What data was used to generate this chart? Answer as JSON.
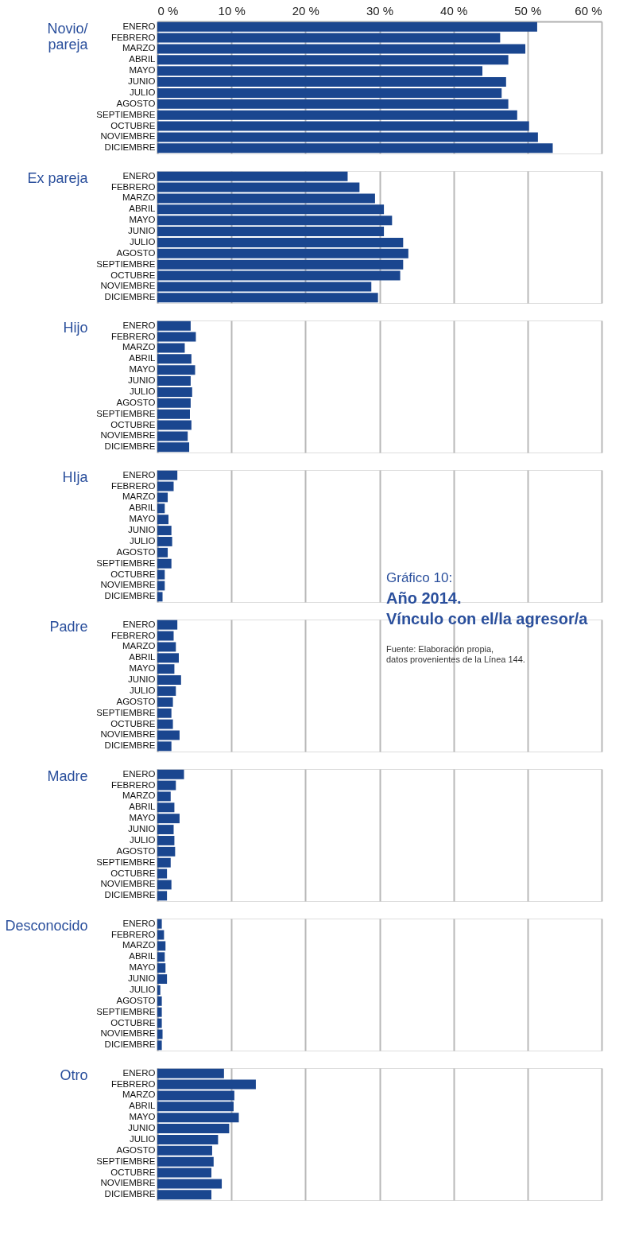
{
  "chart_data": [
    {
      "type": "bar",
      "orientation": "horizontal",
      "ylabel": "Novio/\npareja",
      "categories": [
        "ENERO",
        "FEBRERO",
        "MARZO",
        "ABRIL",
        "MAYO",
        "JUNIO",
        "JULIO",
        "AGOSTO",
        "SEPTIEMBRE",
        "OCTUBRE",
        "NOVIEMBRE",
        "DICIEMBRE"
      ],
      "color": "#1a468f",
      "values": [
        51.3,
        46.3,
        49.7,
        47.4,
        43.9,
        47.1,
        46.5,
        47.4,
        48.6,
        50.2,
        51.4,
        53.4
      ],
      "xlim": [
        0,
        60
      ],
      "xticks": [
        {
          "value": 0,
          "label": "0 %"
        },
        {
          "value": 10,
          "label": "10 %"
        },
        {
          "value": 20,
          "label": "20 %"
        },
        {
          "value": 30,
          "label": "30 %"
        },
        {
          "value": 40,
          "label": "40 %"
        },
        {
          "value": 50,
          "label": "50 %"
        },
        {
          "value": 60,
          "label": "60 %"
        }
      ],
      "grid": "x"
    },
    {
      "type": "bar",
      "orientation": "horizontal",
      "ylabel": "Ex pareja",
      "categories": [
        "ENERO",
        "FEBRERO",
        "MARZO",
        "ABRIL",
        "MAYO",
        "JUNIO",
        "JULIO",
        "AGOSTO",
        "SEPTIEMBRE",
        "OCTUBRE",
        "NOVIEMBRE",
        "DICIEMBRE"
      ],
      "color": "#1a468f",
      "values": [
        25.7,
        27.3,
        29.4,
        30.6,
        31.7,
        30.6,
        33.2,
        33.9,
        33.2,
        32.8,
        28.9,
        29.8
      ],
      "xlim": [
        0,
        60
      ],
      "xticks": [
        {
          "value": 0,
          "label": null
        },
        {
          "value": 10,
          "label": null
        },
        {
          "value": 20,
          "label": null
        },
        {
          "value": 30,
          "label": null
        },
        {
          "value": 40,
          "label": null
        },
        {
          "value": 50,
          "label": null
        },
        {
          "value": 60,
          "label": null
        }
      ],
      "tick_labels": "y",
      "grid": "x"
    },
    {
      "type": "bar",
      "orientation": "horizontal",
      "ylabel": "Hijo",
      "categories": [
        "ENERO",
        "FEBRERO",
        "MARZO",
        "ABRIL",
        "MAYO",
        "JUNIO",
        "JULIO",
        "AGOSTO",
        "SEPTIEMBRE",
        "OCTUBRE",
        "NOVIEMBRE",
        "DICIEMBRE"
      ],
      "color": "#1a468f",
      "values": [
        4.5,
        5.2,
        3.7,
        4.6,
        5.1,
        4.5,
        4.7,
        4.5,
        4.4,
        4.6,
        4.1,
        4.3
      ],
      "xlim": [
        0,
        60
      ],
      "xticks": [
        {
          "value": 0,
          "label": null
        },
        {
          "value": 10,
          "label": null
        },
        {
          "value": 20,
          "label": null
        },
        {
          "value": 30,
          "label": null
        },
        {
          "value": 40,
          "label": null
        },
        {
          "value": 50,
          "label": null
        },
        {
          "value": 60,
          "label": null
        }
      ],
      "tick_labels": "y",
      "grid": "x"
    },
    {
      "type": "bar",
      "orientation": "horizontal",
      "ylabel": "HIja",
      "categories": [
        "ENERO",
        "FEBRERO",
        "MARZO",
        "ABRIL",
        "MAYO",
        "JUNIO",
        "JULIO",
        "AGOSTO",
        "SEPTIEMBRE",
        "OCTUBRE",
        "NOVIEMBRE",
        "DICIEMBRE"
      ],
      "color": "#1a468f",
      "values": [
        2.7,
        2.2,
        1.4,
        1.0,
        1.5,
        1.9,
        2.0,
        1.4,
        1.9,
        1.0,
        1.0,
        0.7
      ],
      "xlim": [
        0,
        60
      ],
      "xticks": [
        {
          "value": 0,
          "label": null
        },
        {
          "value": 10,
          "label": null
        },
        {
          "value": 20,
          "label": null
        },
        {
          "value": 30,
          "label": null
        },
        {
          "value": 40,
          "label": null
        },
        {
          "value": 50,
          "label": null
        },
        {
          "value": 60,
          "label": null
        }
      ],
      "tick_labels": "y",
      "grid": "x"
    },
    {
      "type": "bar",
      "orientation": "horizontal",
      "title": "Año 2014.\nVínculo con el/la agresor/a",
      "annotations": [
        "Gráfico 10:",
        "Fuente: Elaboración propia,\ndatos provenientes de la Línea 144."
      ],
      "ylabel": "Padre",
      "categories": [
        "ENERO",
        "FEBRERO",
        "MARZO",
        "ABRIL",
        "MAYO",
        "JUNIO",
        "JULIO",
        "AGOSTO",
        "SEPTIEMBRE",
        "OCTUBRE",
        "NOVIEMBRE",
        "DICIEMBRE"
      ],
      "color": "#1a468f",
      "values": [
        2.7,
        2.2,
        2.5,
        2.9,
        2.3,
        3.2,
        2.5,
        2.1,
        1.9,
        2.1,
        3.0,
        1.9
      ],
      "xlim": [
        0,
        60
      ],
      "xticks": [
        {
          "value": 0,
          "label": null
        },
        {
          "value": 10,
          "label": null
        },
        {
          "value": 20,
          "label": null
        },
        {
          "value": 30,
          "label": null
        },
        {
          "value": 40,
          "label": null
        },
        {
          "value": 50,
          "label": null
        },
        {
          "value": 60,
          "label": null
        }
      ],
      "tick_labels": "y",
      "grid": "x"
    },
    {
      "type": "bar",
      "orientation": "horizontal",
      "ylabel": "Madre",
      "categories": [
        "ENERO",
        "FEBRERO",
        "MARZO",
        "ABRIL",
        "MAYO",
        "JUNIO",
        "JULIO",
        "AGOSTO",
        "SEPTIEMBRE",
        "OCTUBRE",
        "NOVIEMBRE",
        "DICIEMBRE"
      ],
      "color": "#1a468f",
      "values": [
        3.6,
        2.5,
        1.8,
        2.3,
        3.0,
        2.2,
        2.3,
        2.4,
        1.8,
        1.3,
        1.9,
        1.3
      ],
      "xlim": [
        0,
        60
      ],
      "xticks": [
        {
          "value": 0,
          "label": null
        },
        {
          "value": 10,
          "label": null
        },
        {
          "value": 20,
          "label": null
        },
        {
          "value": 30,
          "label": null
        },
        {
          "value": 40,
          "label": null
        },
        {
          "value": 50,
          "label": null
        },
        {
          "value": 60,
          "label": null
        }
      ],
      "tick_labels": "y",
      "grid": "x"
    },
    {
      "type": "bar",
      "orientation": "horizontal",
      "ylabel": "Desconocido",
      "categories": [
        "ENERO",
        "FEBRERO",
        "MARZO",
        "ABRIL",
        "MAYO",
        "JUNIO",
        "JULIO",
        "AGOSTO",
        "SEPTIEMBRE",
        "OCTUBRE",
        "NOVIEMBRE",
        "DICIEMBRE"
      ],
      "color": "#1a468f",
      "values": [
        0.6,
        0.9,
        1.1,
        1.0,
        1.1,
        1.3,
        0.4,
        0.6,
        0.6,
        0.6,
        0.7,
        0.6
      ],
      "xlim": [
        0,
        60
      ],
      "xticks": [
        {
          "value": 0,
          "label": null
        },
        {
          "value": 10,
          "label": null
        },
        {
          "value": 20,
          "label": null
        },
        {
          "value": 30,
          "label": null
        },
        {
          "value": 40,
          "label": null
        },
        {
          "value": 50,
          "label": null
        },
        {
          "value": 60,
          "label": null
        }
      ],
      "tick_labels": "y",
      "grid": "x"
    },
    {
      "type": "bar",
      "orientation": "horizontal",
      "ylabel": "Otro",
      "categories": [
        "ENERO",
        "FEBRERO",
        "MARZO",
        "ABRIL",
        "MAYO",
        "JUNIO",
        "JULIO",
        "AGOSTO",
        "SEPTIEMBRE",
        "OCTUBRE",
        "NOVIEMBRE",
        "DICIEMBRE"
      ],
      "color": "#1a468f",
      "values": [
        9.0,
        13.3,
        10.4,
        10.3,
        11.0,
        9.7,
        8.2,
        7.4,
        7.6,
        7.3,
        8.7,
        7.3
      ],
      "xlim": [
        0,
        60
      ],
      "xticks": [
        {
          "value": 0,
          "label": null
        },
        {
          "value": 10,
          "label": null
        },
        {
          "value": 20,
          "label": null
        },
        {
          "value": 30,
          "label": null
        },
        {
          "value": 40,
          "label": null
        },
        {
          "value": 50,
          "label": null
        },
        {
          "value": 60,
          "label": null
        }
      ],
      "tick_labels": "y",
      "grid": "x"
    }
  ]
}
